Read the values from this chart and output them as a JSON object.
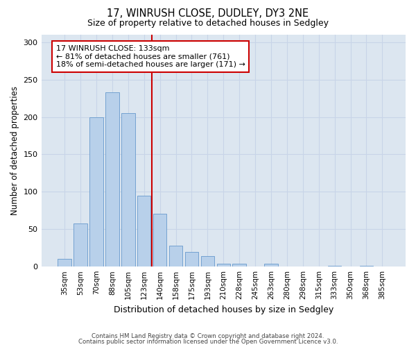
{
  "title1": "17, WINRUSH CLOSE, DUDLEY, DY3 2NE",
  "title2": "Size of property relative to detached houses in Sedgley",
  "xlabel": "Distribution of detached houses by size in Sedgley",
  "ylabel": "Number of detached properties",
  "categories": [
    "35sqm",
    "53sqm",
    "70sqm",
    "88sqm",
    "105sqm",
    "123sqm",
    "140sqm",
    "158sqm",
    "175sqm",
    "193sqm",
    "210sqm",
    "228sqm",
    "245sqm",
    "263sqm",
    "280sqm",
    "298sqm",
    "315sqm",
    "333sqm",
    "350sqm",
    "368sqm",
    "385sqm"
  ],
  "values": [
    10,
    58,
    200,
    233,
    205,
    95,
    71,
    28,
    20,
    14,
    4,
    4,
    0,
    4,
    0,
    0,
    0,
    1,
    0,
    1,
    0
  ],
  "bar_color": "#b8d0ea",
  "bar_edge_color": "#6699cc",
  "vline_color": "#cc0000",
  "annotation_line1": "17 WINRUSH CLOSE: 133sqm",
  "annotation_line2": "← 81% of detached houses are smaller (761)",
  "annotation_line3": "18% of semi-detached houses are larger (171) →",
  "annotation_box_facecolor": "#ffffff",
  "annotation_box_edgecolor": "#cc0000",
  "ylim": [
    0,
    310
  ],
  "yticks": [
    0,
    50,
    100,
    150,
    200,
    250,
    300
  ],
  "grid_color": "#c8d4e8",
  "bg_color": "#dce6f0",
  "footer1": "Contains HM Land Registry data © Crown copyright and database right 2024.",
  "footer2": "Contains public sector information licensed under the Open Government Licence v3.0."
}
